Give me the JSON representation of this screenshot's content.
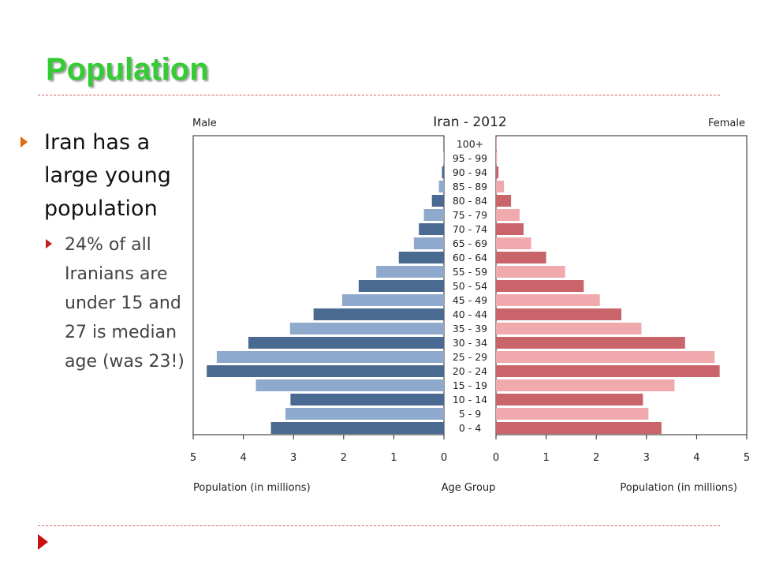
{
  "slide": {
    "title": "Population",
    "bullet_main": "Iran has a large young population",
    "bullet_sub": "24% of all Iranians are under 15 and 27 is median age (was 23!)"
  },
  "chart_data": {
    "type": "bar",
    "subtype": "population-pyramid",
    "title": "Iran - 2012",
    "left_label": "Male",
    "right_label": "Female",
    "xlabel_left": "Population (in millions)",
    "xlabel_center": "Age Group",
    "xlabel_right": "Population (in millions)",
    "xlim": [
      0,
      5
    ],
    "ticks": [
      5,
      4,
      3,
      2,
      1,
      0
    ],
    "ticks_right": [
      0,
      1,
      2,
      3,
      4,
      5
    ],
    "categories": [
      "100+",
      "95 - 99",
      "90 - 94",
      "85 - 89",
      "80 - 84",
      "75 - 79",
      "70 - 74",
      "65 - 69",
      "60 - 64",
      "55 - 59",
      "50 - 54",
      "45 - 49",
      "40 - 44",
      "35 - 39",
      "30 - 34",
      "25 - 29",
      "20 - 24",
      "15 - 19",
      "10 - 14",
      "5 - 9",
      "0 - 4"
    ],
    "series": [
      {
        "name": "Male",
        "values": [
          0.0,
          0.01,
          0.04,
          0.1,
          0.24,
          0.4,
          0.5,
          0.6,
          0.9,
          1.35,
          1.7,
          2.03,
          2.6,
          3.07,
          3.9,
          4.53,
          4.73,
          3.75,
          3.06,
          3.16,
          3.45
        ]
      },
      {
        "name": "Female",
        "values": [
          0.01,
          0.02,
          0.05,
          0.16,
          0.3,
          0.47,
          0.55,
          0.7,
          1.0,
          1.38,
          1.75,
          2.07,
          2.5,
          2.9,
          3.77,
          4.36,
          4.46,
          3.56,
          2.93,
          3.04,
          3.3
        ]
      }
    ],
    "colors": {
      "male_dark": "#4a6a91",
      "male_light": "#8ea9cb",
      "female_dark": "#c9646a",
      "female_light": "#f0a9ad"
    }
  }
}
